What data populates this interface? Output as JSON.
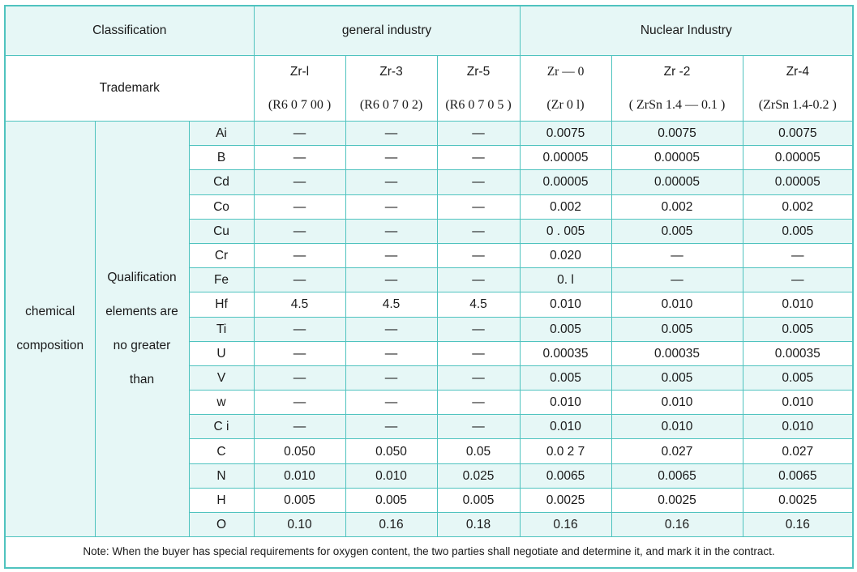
{
  "header": {
    "classification": "Classification",
    "general_industry": "general industry",
    "nuclear_industry": "Nuclear Industry",
    "trademark": "Trademark"
  },
  "grades": [
    {
      "name": "Zr-l",
      "code": "(R6 0 7 00 )"
    },
    {
      "name": "Zr-3",
      "code": "(R6 0 7 0 2)"
    },
    {
      "name": "Zr-5",
      "code": "(R6 0 7 0 5 )"
    },
    {
      "name": "Zr — 0",
      "code": "(Zr 0 l)"
    },
    {
      "name": "Zr -2",
      "code": "( ZrSn 1.4 — 0.1 )"
    },
    {
      "name": "Zr-4",
      "code": "(ZrSn 1.4-0.2 )"
    }
  ],
  "group": {
    "line1": "chemical",
    "line2": "composition"
  },
  "qualification": {
    "line1": "Qualification",
    "line2": "elements are",
    "line3": "no greater",
    "line4": "than"
  },
  "rows": [
    {
      "element": "Ai",
      "values": [
        "—",
        "—",
        "—",
        "0.0075",
        "0.0075",
        "0.0075"
      ]
    },
    {
      "element": "B",
      "values": [
        "—",
        "—",
        "—",
        "0.00005",
        "0.00005",
        "0.00005"
      ]
    },
    {
      "element": "Cd",
      "values": [
        "—",
        "—",
        "—",
        "0.00005",
        "0.00005",
        "0.00005"
      ]
    },
    {
      "element": "Co",
      "values": [
        "—",
        "—",
        "—",
        "0.002",
        "0.002",
        "0.002"
      ]
    },
    {
      "element": "Cu",
      "values": [
        "—",
        "—",
        "—",
        "0 . 005",
        "0.005",
        "0.005"
      ]
    },
    {
      "element": "Cr",
      "values": [
        "—",
        "—",
        "—",
        "0.020",
        "—",
        "—"
      ]
    },
    {
      "element": "Fe",
      "values": [
        "—",
        "—",
        "—",
        "0. l",
        "—",
        "—"
      ]
    },
    {
      "element": "Hf",
      "values": [
        "4.5",
        "4.5",
        "4.5",
        "0.010",
        "0.010",
        "0.010"
      ]
    },
    {
      "element": "Ti",
      "values": [
        "—",
        "—",
        "—",
        "0.005",
        "0.005",
        "0.005"
      ]
    },
    {
      "element": "U",
      "values": [
        "—",
        "—",
        "—",
        "0.00035",
        "0.00035",
        "0.00035"
      ]
    },
    {
      "element": "V",
      "values": [
        "—",
        "—",
        "—",
        "0.005",
        "0.005",
        "0.005"
      ]
    },
    {
      "element": "w",
      "values": [
        "—",
        "—",
        "—",
        "0.010",
        "0.010",
        "0.010"
      ]
    },
    {
      "element": "C i",
      "values": [
        "—",
        "—",
        "—",
        "0.010",
        "0.010",
        "0.010"
      ]
    },
    {
      "element": "C",
      "values": [
        "0.050",
        "0.050",
        "0.05",
        "0.0 2 7",
        "0.027",
        "0.027"
      ]
    },
    {
      "element": "N",
      "values": [
        "0.010",
        "0.010",
        "0.025",
        "0.0065",
        "0.0065",
        "0.0065"
      ]
    },
    {
      "element": "H",
      "values": [
        "0.005",
        "0.005",
        "0.005",
        "0.0025",
        "0.0025",
        "0.0025"
      ]
    },
    {
      "element": "O",
      "values": [
        "0.10",
        "0.16",
        "0.18",
        "0.16",
        "0.16",
        "0.16"
      ]
    }
  ],
  "note": "Note: When the buyer has special requirements for oxygen content, the two parties shall negotiate and determine it, and mark it in the contract.",
  "colors": {
    "border": "#4fc3bf",
    "band": "#e6f7f6"
  }
}
